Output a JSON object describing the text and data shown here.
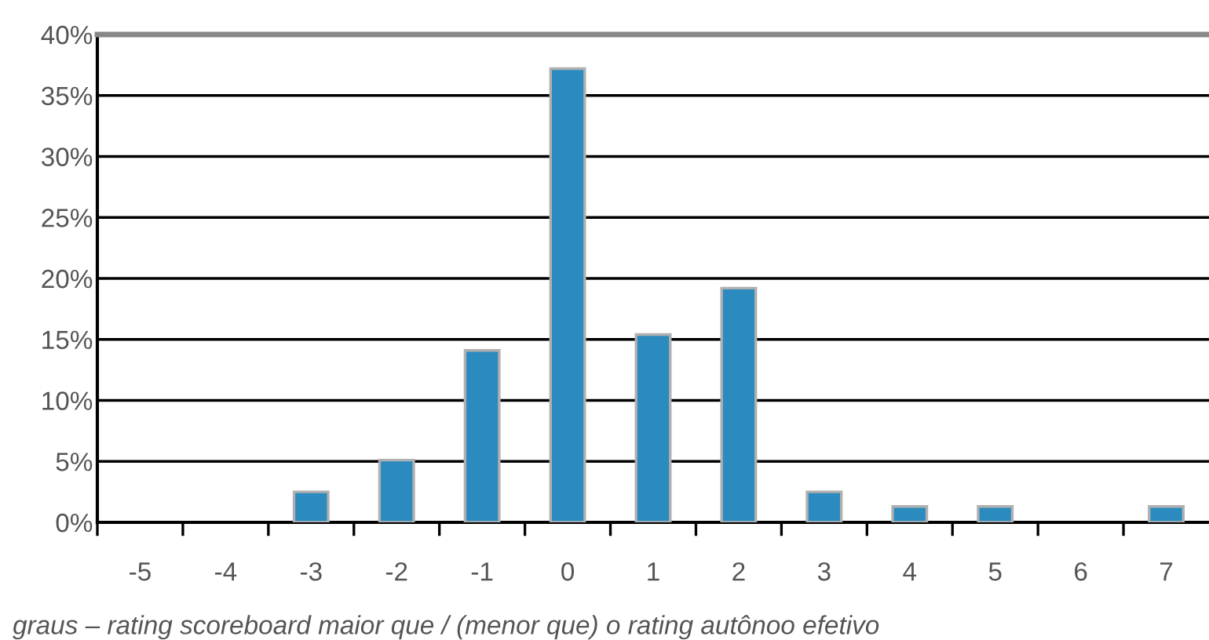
{
  "chart_data": {
    "type": "bar",
    "categories": [
      "-5",
      "-4",
      "-3",
      "-2",
      "-1",
      "0",
      "1",
      "2",
      "3",
      "4",
      "5",
      "6",
      "7"
    ],
    "values": [
      0,
      0,
      2.5,
      5.1,
      14.1,
      37.2,
      15.4,
      19.2,
      2.5,
      1.3,
      1.3,
      0,
      1.3
    ],
    "color": "#2b8bbf",
    "xlabel": "graus – rating scoreboard maior que / (menor que) o rating autônoo efetivo",
    "ylim": [
      0,
      40
    ],
    "yticks": [
      {
        "value": 0,
        "label": "0%"
      },
      {
        "value": 5,
        "label": "5%"
      },
      {
        "value": 10,
        "label": "10%"
      },
      {
        "value": 15,
        "label": "15%"
      },
      {
        "value": 20,
        "label": "20%"
      },
      {
        "value": 25,
        "label": "25%"
      },
      {
        "value": 30,
        "label": "30%"
      },
      {
        "value": 35,
        "label": "35%"
      },
      {
        "value": 40,
        "label": "40%"
      }
    ],
    "grid": "y",
    "legend": false
  }
}
